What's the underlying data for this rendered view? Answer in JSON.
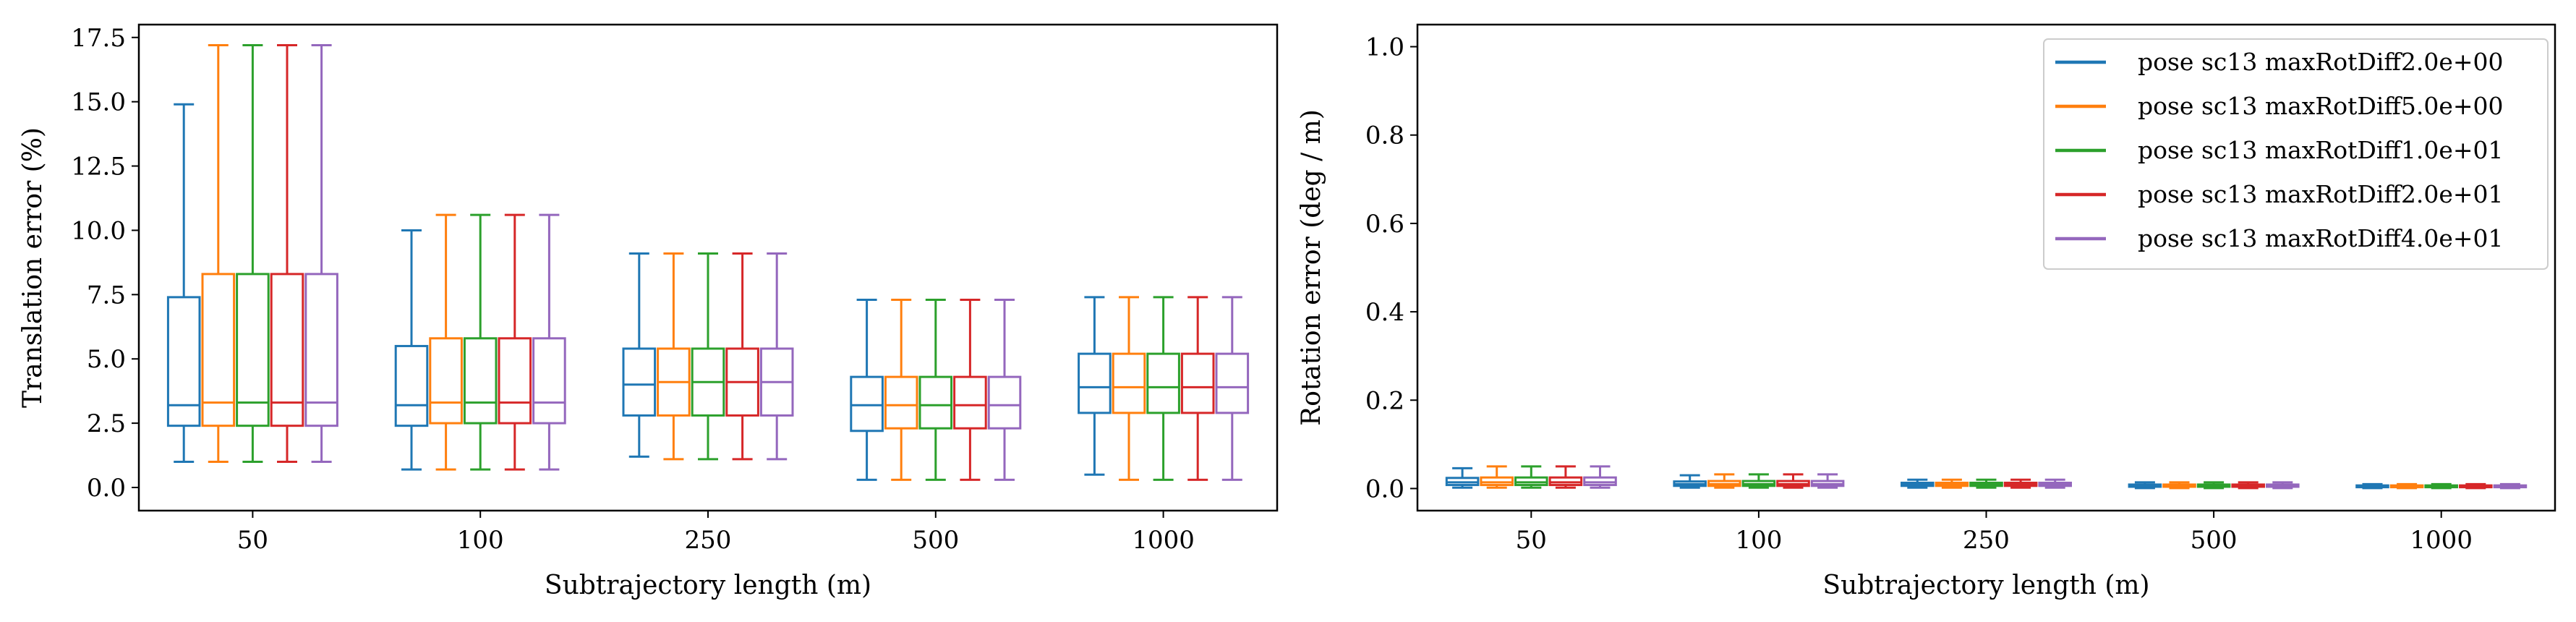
{
  "chart_data": [
    {
      "type": "box",
      "xlabel": "Subtrajectory length (m)",
      "ylabel": "Translation error (%)",
      "ylim": [
        -0.9,
        18.0
      ],
      "yticks": [
        "0.0",
        "2.5",
        "5.0",
        "7.5",
        "10.0",
        "12.5",
        "15.0",
        "17.5"
      ],
      "categories": [
        "50",
        "100",
        "250",
        "500",
        "1000"
      ],
      "series": [
        {
          "name": "pose sc13 maxRotDiff2.0e+00",
          "color": "#1f77b4",
          "boxes": [
            {
              "whislo": 1.0,
              "q1": 2.4,
              "med": 3.2,
              "q3": 7.4,
              "whishi": 14.9
            },
            {
              "whislo": 0.7,
              "q1": 2.4,
              "med": 3.2,
              "q3": 5.5,
              "whishi": 10.0
            },
            {
              "whislo": 1.2,
              "q1": 2.8,
              "med": 4.0,
              "q3": 5.4,
              "whishi": 9.1
            },
            {
              "whislo": 0.3,
              "q1": 2.2,
              "med": 3.2,
              "q3": 4.3,
              "whishi": 7.3
            },
            {
              "whislo": 0.5,
              "q1": 2.9,
              "med": 3.9,
              "q3": 5.2,
              "whishi": 7.4
            }
          ]
        },
        {
          "name": "pose sc13 maxRotDiff5.0e+00",
          "color": "#ff7f0e",
          "boxes": [
            {
              "whislo": 1.0,
              "q1": 2.4,
              "med": 3.3,
              "q3": 8.3,
              "whishi": 17.2
            },
            {
              "whislo": 0.7,
              "q1": 2.5,
              "med": 3.3,
              "q3": 5.8,
              "whishi": 10.6
            },
            {
              "whislo": 1.1,
              "q1": 2.8,
              "med": 4.1,
              "q3": 5.4,
              "whishi": 9.1
            },
            {
              "whislo": 0.3,
              "q1": 2.3,
              "med": 3.2,
              "q3": 4.3,
              "whishi": 7.3
            },
            {
              "whislo": 0.3,
              "q1": 2.9,
              "med": 3.9,
              "q3": 5.2,
              "whishi": 7.4
            }
          ]
        },
        {
          "name": "pose sc13 maxRotDiff1.0e+01",
          "color": "#2ca02c",
          "boxes": [
            {
              "whislo": 1.0,
              "q1": 2.4,
              "med": 3.3,
              "q3": 8.3,
              "whishi": 17.2
            },
            {
              "whislo": 0.7,
              "q1": 2.5,
              "med": 3.3,
              "q3": 5.8,
              "whishi": 10.6
            },
            {
              "whislo": 1.1,
              "q1": 2.8,
              "med": 4.1,
              "q3": 5.4,
              "whishi": 9.1
            },
            {
              "whislo": 0.3,
              "q1": 2.3,
              "med": 3.2,
              "q3": 4.3,
              "whishi": 7.3
            },
            {
              "whislo": 0.3,
              "q1": 2.9,
              "med": 3.9,
              "q3": 5.2,
              "whishi": 7.4
            }
          ]
        },
        {
          "name": "pose sc13 maxRotDiff2.0e+01",
          "color": "#d62728",
          "boxes": [
            {
              "whislo": 1.0,
              "q1": 2.4,
              "med": 3.3,
              "q3": 8.3,
              "whishi": 17.2
            },
            {
              "whislo": 0.7,
              "q1": 2.5,
              "med": 3.3,
              "q3": 5.8,
              "whishi": 10.6
            },
            {
              "whislo": 1.1,
              "q1": 2.8,
              "med": 4.1,
              "q3": 5.4,
              "whishi": 9.1
            },
            {
              "whislo": 0.3,
              "q1": 2.3,
              "med": 3.2,
              "q3": 4.3,
              "whishi": 7.3
            },
            {
              "whislo": 0.3,
              "q1": 2.9,
              "med": 3.9,
              "q3": 5.2,
              "whishi": 7.4
            }
          ]
        },
        {
          "name": "pose sc13 maxRotDiff4.0e+01",
          "color": "#9467bd",
          "boxes": [
            {
              "whislo": 1.0,
              "q1": 2.4,
              "med": 3.3,
              "q3": 8.3,
              "whishi": 17.2
            },
            {
              "whislo": 0.7,
              "q1": 2.5,
              "med": 3.3,
              "q3": 5.8,
              "whishi": 10.6
            },
            {
              "whislo": 1.1,
              "q1": 2.8,
              "med": 4.1,
              "q3": 5.4,
              "whishi": 9.1
            },
            {
              "whislo": 0.3,
              "q1": 2.3,
              "med": 3.2,
              "q3": 4.3,
              "whishi": 7.3
            },
            {
              "whislo": 0.3,
              "q1": 2.9,
              "med": 3.9,
              "q3": 5.2,
              "whishi": 7.4
            }
          ]
        }
      ]
    },
    {
      "type": "box",
      "xlabel": "Subtrajectory length (m)",
      "ylabel": "Rotation error (deg / m)",
      "ylim": [
        -0.05,
        1.05
      ],
      "yticks": [
        "0.0",
        "0.2",
        "0.4",
        "0.6",
        "0.8",
        "1.0"
      ],
      "categories": [
        "50",
        "100",
        "250",
        "500",
        "1000"
      ],
      "legend": "top-right",
      "series": [
        {
          "name": "pose sc13 maxRotDiff2.0e+00",
          "color": "#1f77b4",
          "boxes": [
            {
              "whislo": 0.002,
              "q1": 0.008,
              "med": 0.014,
              "q3": 0.024,
              "whishi": 0.046
            },
            {
              "whislo": 0.002,
              "q1": 0.006,
              "med": 0.01,
              "q3": 0.016,
              "whishi": 0.03
            },
            {
              "whislo": 0.002,
              "q1": 0.006,
              "med": 0.009,
              "q3": 0.013,
              "whishi": 0.02
            },
            {
              "whislo": 0.001,
              "q1": 0.004,
              "med": 0.006,
              "q3": 0.009,
              "whishi": 0.014
            },
            {
              "whislo": 0.001,
              "q1": 0.003,
              "med": 0.005,
              "q3": 0.007,
              "whishi": 0.01
            }
          ]
        },
        {
          "name": "pose sc13 maxRotDiff5.0e+00",
          "color": "#ff7f0e",
          "boxes": [
            {
              "whislo": 0.002,
              "q1": 0.008,
              "med": 0.014,
              "q3": 0.025,
              "whishi": 0.05
            },
            {
              "whislo": 0.002,
              "q1": 0.006,
              "med": 0.01,
              "q3": 0.017,
              "whishi": 0.032
            },
            {
              "whislo": 0.002,
              "q1": 0.006,
              "med": 0.009,
              "q3": 0.013,
              "whishi": 0.02
            },
            {
              "whislo": 0.001,
              "q1": 0.004,
              "med": 0.006,
              "q3": 0.009,
              "whishi": 0.014
            },
            {
              "whislo": 0.001,
              "q1": 0.003,
              "med": 0.005,
              "q3": 0.007,
              "whishi": 0.01
            }
          ]
        },
        {
          "name": "pose sc13 maxRotDiff1.0e+01",
          "color": "#2ca02c",
          "boxes": [
            {
              "whislo": 0.002,
              "q1": 0.008,
              "med": 0.014,
              "q3": 0.025,
              "whishi": 0.05
            },
            {
              "whislo": 0.002,
              "q1": 0.006,
              "med": 0.01,
              "q3": 0.017,
              "whishi": 0.032
            },
            {
              "whislo": 0.002,
              "q1": 0.006,
              "med": 0.009,
              "q3": 0.013,
              "whishi": 0.02
            },
            {
              "whislo": 0.001,
              "q1": 0.004,
              "med": 0.006,
              "q3": 0.009,
              "whishi": 0.014
            },
            {
              "whislo": 0.001,
              "q1": 0.003,
              "med": 0.005,
              "q3": 0.007,
              "whishi": 0.01
            }
          ]
        },
        {
          "name": "pose sc13 maxRotDiff2.0e+01",
          "color": "#d62728",
          "boxes": [
            {
              "whislo": 0.002,
              "q1": 0.008,
              "med": 0.014,
              "q3": 0.025,
              "whishi": 0.05
            },
            {
              "whislo": 0.002,
              "q1": 0.006,
              "med": 0.01,
              "q3": 0.017,
              "whishi": 0.032
            },
            {
              "whislo": 0.002,
              "q1": 0.006,
              "med": 0.009,
              "q3": 0.013,
              "whishi": 0.02
            },
            {
              "whislo": 0.001,
              "q1": 0.004,
              "med": 0.006,
              "q3": 0.009,
              "whishi": 0.014
            },
            {
              "whislo": 0.001,
              "q1": 0.003,
              "med": 0.005,
              "q3": 0.007,
              "whishi": 0.01
            }
          ]
        },
        {
          "name": "pose sc13 maxRotDiff4.0e+01",
          "color": "#9467bd",
          "boxes": [
            {
              "whislo": 0.002,
              "q1": 0.008,
              "med": 0.014,
              "q3": 0.025,
              "whishi": 0.05
            },
            {
              "whislo": 0.002,
              "q1": 0.006,
              "med": 0.01,
              "q3": 0.017,
              "whishi": 0.032
            },
            {
              "whislo": 0.002,
              "q1": 0.006,
              "med": 0.009,
              "q3": 0.013,
              "whishi": 0.02
            },
            {
              "whislo": 0.001,
              "q1": 0.004,
              "med": 0.006,
              "q3": 0.009,
              "whishi": 0.014
            },
            {
              "whislo": 0.001,
              "q1": 0.003,
              "med": 0.005,
              "q3": 0.007,
              "whishi": 0.01
            }
          ]
        }
      ]
    }
  ]
}
